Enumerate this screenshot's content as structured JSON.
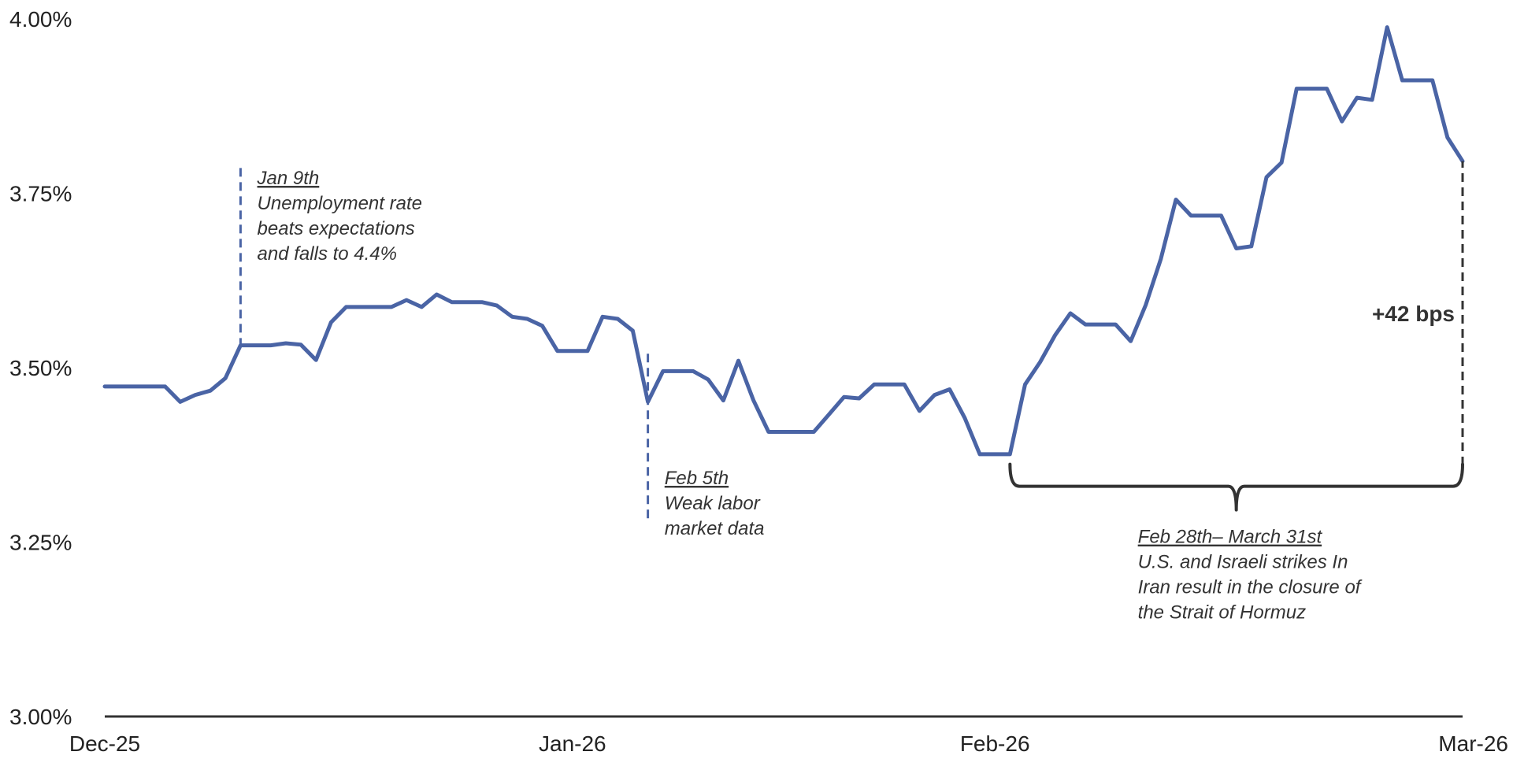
{
  "chart_data": {
    "type": "line",
    "title": "",
    "xlabel": "",
    "ylabel": "",
    "ylim": [
      3.0,
      4.0
    ],
    "yticks": [
      {
        "value": 3.0,
        "label": "3.00%"
      },
      {
        "value": 3.25,
        "label": "3.25%"
      },
      {
        "value": 3.5,
        "label": "3.50%"
      },
      {
        "value": 3.75,
        "label": "3.75%"
      },
      {
        "value": 4.0,
        "label": "4.00%"
      }
    ],
    "xlim": [
      "2025-12-31",
      "2026-03-31"
    ],
    "xticks": [
      {
        "date": "2025-12-31",
        "label": "Dec-25"
      },
      {
        "date": "2026-01-31",
        "label": "Jan-26"
      },
      {
        "date": "2026-02-28",
        "label": "Feb-26"
      },
      {
        "date": "2026-03-31",
        "label": "Mar-26"
      }
    ],
    "grid": false,
    "legend": "none",
    "colors": {
      "series": "#4a64a5",
      "axis": "#333333",
      "bracket": "#333333"
    },
    "series": [
      {
        "points": [
          [
            "2025-12-31",
            3.473
          ],
          [
            "2026-01-01",
            3.473
          ],
          [
            "2026-01-02",
            3.473
          ],
          [
            "2026-01-03",
            3.473
          ],
          [
            "2026-01-04",
            3.473
          ],
          [
            "2026-01-05",
            3.451
          ],
          [
            "2026-01-06",
            3.461
          ],
          [
            "2026-01-07",
            3.467
          ],
          [
            "2026-01-08",
            3.485
          ],
          [
            "2026-01-09",
            3.532
          ],
          [
            "2026-01-10",
            3.532
          ],
          [
            "2026-01-11",
            3.532
          ],
          [
            "2026-01-12",
            3.535
          ],
          [
            "2026-01-13",
            3.533
          ],
          [
            "2026-01-14",
            3.511
          ],
          [
            "2026-01-15",
            3.565
          ],
          [
            "2026-01-16",
            3.587
          ],
          [
            "2026-01-17",
            3.587
          ],
          [
            "2026-01-18",
            3.587
          ],
          [
            "2026-01-19",
            3.587
          ],
          [
            "2026-01-20",
            3.597
          ],
          [
            "2026-01-21",
            3.587
          ],
          [
            "2026-01-22",
            3.605
          ],
          [
            "2026-01-23",
            3.594
          ],
          [
            "2026-01-24",
            3.594
          ],
          [
            "2026-01-25",
            3.594
          ],
          [
            "2026-01-26",
            3.589
          ],
          [
            "2026-01-27",
            3.573
          ],
          [
            "2026-01-28",
            3.57
          ],
          [
            "2026-01-29",
            3.56
          ],
          [
            "2026-01-30",
            3.524
          ],
          [
            "2026-01-31",
            3.524
          ],
          [
            "2026-02-01",
            3.524
          ],
          [
            "2026-02-02",
            3.573
          ],
          [
            "2026-02-03",
            3.57
          ],
          [
            "2026-02-04",
            3.553
          ],
          [
            "2026-02-05",
            3.451
          ],
          [
            "2026-02-06",
            3.495
          ],
          [
            "2026-02-07",
            3.495
          ],
          [
            "2026-02-08",
            3.495
          ],
          [
            "2026-02-09",
            3.483
          ],
          [
            "2026-02-10",
            3.453
          ],
          [
            "2026-02-11",
            3.51
          ],
          [
            "2026-02-12",
            3.453
          ],
          [
            "2026-02-13",
            3.408
          ],
          [
            "2026-02-14",
            3.408
          ],
          [
            "2026-02-15",
            3.408
          ],
          [
            "2026-02-16",
            3.408
          ],
          [
            "2026-02-17",
            3.433
          ],
          [
            "2026-02-18",
            3.458
          ],
          [
            "2026-02-19",
            3.456
          ],
          [
            "2026-02-20",
            3.476
          ],
          [
            "2026-02-21",
            3.476
          ],
          [
            "2026-02-22",
            3.476
          ],
          [
            "2026-02-23",
            3.438
          ],
          [
            "2026-02-24",
            3.461
          ],
          [
            "2026-02-25",
            3.469
          ],
          [
            "2026-02-26",
            3.428
          ],
          [
            "2026-02-27",
            3.376
          ],
          [
            "2026-02-28",
            3.376
          ],
          [
            "2026-03-01",
            3.376
          ],
          [
            "2026-03-02",
            3.476
          ],
          [
            "2026-03-03",
            3.508
          ],
          [
            "2026-03-04",
            3.547
          ],
          [
            "2026-03-05",
            3.578
          ],
          [
            "2026-03-06",
            3.562
          ],
          [
            "2026-03-07",
            3.562
          ],
          [
            "2026-03-08",
            3.562
          ],
          [
            "2026-03-09",
            3.538
          ],
          [
            "2026-03-10",
            3.59
          ],
          [
            "2026-03-11",
            3.656
          ],
          [
            "2026-03-12",
            3.741
          ],
          [
            "2026-03-13",
            3.718
          ],
          [
            "2026-03-14",
            3.718
          ],
          [
            "2026-03-15",
            3.718
          ],
          [
            "2026-03-16",
            3.671
          ],
          [
            "2026-03-17",
            3.674
          ],
          [
            "2026-03-18",
            3.773
          ],
          [
            "2026-03-19",
            3.794
          ],
          [
            "2026-03-20",
            3.9
          ],
          [
            "2026-03-21",
            3.9
          ],
          [
            "2026-03-22",
            3.9
          ],
          [
            "2026-03-23",
            3.853
          ],
          [
            "2026-03-24",
            3.887
          ],
          [
            "2026-03-25",
            3.884
          ],
          [
            "2026-03-26",
            3.988
          ],
          [
            "2026-03-27",
            3.912
          ],
          [
            "2026-03-28",
            3.912
          ],
          [
            "2026-03-29",
            3.912
          ],
          [
            "2026-03-30",
            3.83
          ],
          [
            "2026-03-31",
            3.796
          ]
        ]
      }
    ],
    "annotations": [
      {
        "id": "jan9",
        "date": "2026-01-09",
        "line_from": 3.53,
        "line_to": 3.79,
        "text_anchor_date": "2026-01-10",
        "text_top_value": 3.79,
        "heading": "Jan 9th",
        "lines": [
          "Unemployment rate",
          "beats expectations",
          "and falls to 4.4%"
        ]
      },
      {
        "id": "feb5",
        "date": "2026-02-05",
        "line_from": 3.52,
        "line_to": 3.28,
        "text_anchor_date": "2026-02-06",
        "text_top_value": 3.36,
        "heading": "Feb 5th",
        "lines": [
          "Weak labor",
          "market data"
        ]
      }
    ],
    "bracket": {
      "start_date": "2026-03-01",
      "end_date": "2026-03-31",
      "level": 3.33,
      "heading": "Feb 28th– March 31st",
      "lines": [
        "U.S. and Israeli strikes In",
        "Iran result in the closure of",
        "the Strait of Hormuz"
      ]
    },
    "change_marker": {
      "date": "2026-03-31",
      "from": 3.36,
      "to": 3.796,
      "label": "+42 bps"
    }
  }
}
